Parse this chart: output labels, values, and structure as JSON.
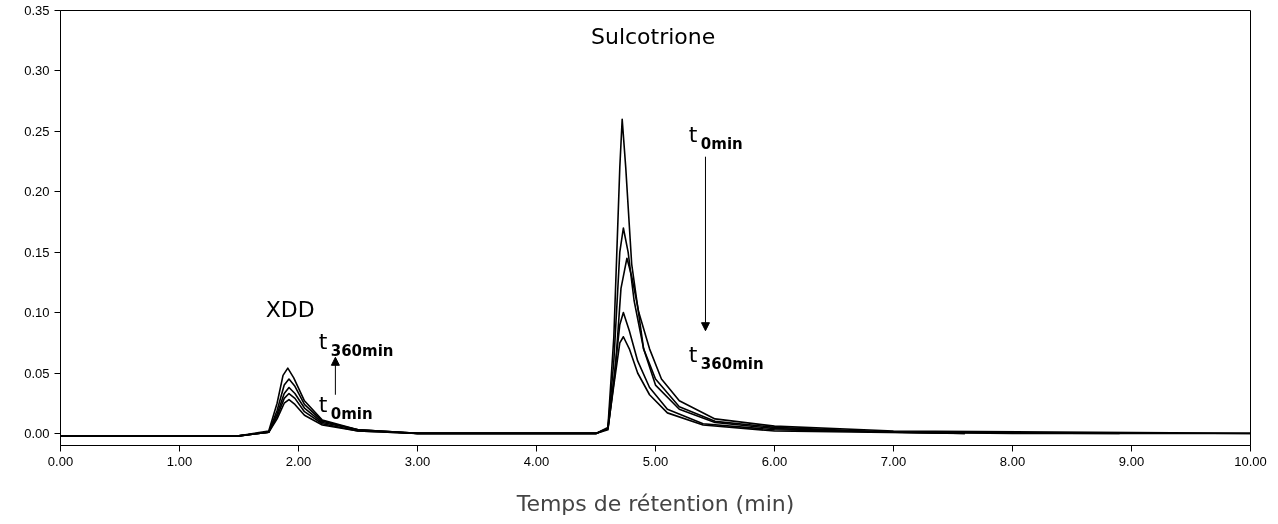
{
  "chart_data": {
    "type": "line",
    "xlabel": "Temps de rétention (min)",
    "xlim": [
      0,
      10
    ],
    "ylim": [
      -0.01,
      0.35
    ],
    "xticks": [
      {
        "value": 0,
        "label": "0.00"
      },
      {
        "value": 1,
        "label": "1.00"
      },
      {
        "value": 2,
        "label": "2.00"
      },
      {
        "value": 3,
        "label": "3.00"
      },
      {
        "value": 4,
        "label": "4.00"
      },
      {
        "value": 5,
        "label": "5.00"
      },
      {
        "value": 6,
        "label": "6.00"
      },
      {
        "value": 7,
        "label": "7.00"
      },
      {
        "value": 8,
        "label": "8.00"
      },
      {
        "value": 9,
        "label": "9.00"
      },
      {
        "value": 10,
        "label": "10.00"
      }
    ],
    "yticks": [
      {
        "value": 0,
        "label": "0.00"
      },
      {
        "value": 0.05,
        "label": "0.05"
      },
      {
        "value": 0.1,
        "label": "0.10"
      },
      {
        "value": 0.15,
        "label": "0.15"
      },
      {
        "value": 0.2,
        "label": "0.20"
      },
      {
        "value": 0.25,
        "label": "0.25"
      },
      {
        "value": 0.3,
        "label": "0.30"
      },
      {
        "value": 0.35,
        "label": "0.35"
      }
    ],
    "grid": false,
    "marker": "none",
    "line_style": "solid",
    "series": [
      {
        "color": "#000000",
        "x": [
          0,
          1.5,
          1.75,
          1.82,
          1.88,
          1.92,
          1.97,
          2.05,
          2.2,
          2.5,
          3,
          4,
          4.5,
          4.6,
          4.65,
          4.7,
          4.72,
          4.75,
          4.8,
          4.9,
          5.0,
          5.2,
          5.5,
          6,
          7,
          8,
          10
        ],
        "values": [
          -0.002,
          -0.002,
          0.001,
          0.012,
          0.025,
          0.028,
          0.024,
          0.015,
          0.007,
          0.002,
          0,
          0,
          0,
          0.005,
          0.08,
          0.22,
          0.26,
          0.22,
          0.14,
          0.07,
          0.04,
          0.02,
          0.009,
          0.004,
          0.001,
          0,
          0
        ]
      },
      {
        "color": "#000000",
        "x": [
          0,
          1.5,
          1.75,
          1.82,
          1.88,
          1.92,
          1.97,
          2.05,
          2.2,
          2.5,
          3,
          4,
          4.5,
          4.6,
          4.65,
          4.7,
          4.73,
          4.77,
          4.82,
          4.9,
          5.0,
          5.2,
          5.5,
          6,
          7,
          8.9
        ],
        "values": [
          -0.002,
          -0.002,
          0.001,
          0.014,
          0.029,
          0.033,
          0.029,
          0.018,
          0.008,
          0.002,
          0,
          0,
          0,
          0.004,
          0.06,
          0.15,
          0.17,
          0.15,
          0.11,
          0.07,
          0.045,
          0.022,
          0.01,
          0.005,
          0.001,
          0
        ]
      },
      {
        "color": "#000000",
        "x": [
          0,
          1.5,
          1.75,
          1.82,
          1.88,
          1.92,
          1.97,
          2.05,
          2.2,
          2.5,
          3,
          4,
          4.5,
          4.6,
          4.66,
          4.71,
          4.76,
          4.8,
          4.86,
          4.95,
          5.05,
          5.2,
          5.5,
          6,
          7,
          10
        ],
        "values": [
          -0.002,
          -0.002,
          0.001,
          0.016,
          0.033,
          0.038,
          0.033,
          0.021,
          0.009,
          0.003,
          0,
          0,
          0,
          0.003,
          0.05,
          0.12,
          0.145,
          0.13,
          0.1,
          0.07,
          0.045,
          0.027,
          0.012,
          0.006,
          0.002,
          0
        ]
      },
      {
        "color": "#000000",
        "x": [
          0,
          1.5,
          1.75,
          1.82,
          1.88,
          1.92,
          1.97,
          2.05,
          2.2,
          2.5,
          3,
          4,
          4.5,
          4.6,
          4.65,
          4.7,
          4.73,
          4.78,
          4.85,
          4.95,
          5.1,
          5.4,
          6,
          7.6
        ],
        "values": [
          -0.002,
          -0.002,
          0.001,
          0.019,
          0.04,
          0.045,
          0.039,
          0.024,
          0.01,
          0.003,
          0,
          0,
          0,
          0.004,
          0.045,
          0.09,
          0.1,
          0.085,
          0.06,
          0.038,
          0.02,
          0.008,
          0.003,
          0
        ]
      },
      {
        "color": "#000000",
        "x": [
          0,
          1.5,
          1.75,
          1.82,
          1.87,
          1.91,
          1.96,
          2.05,
          2.2,
          2.5,
          3,
          4,
          4.5,
          4.6,
          4.65,
          4.7,
          4.73,
          4.78,
          4.85,
          4.95,
          5.1,
          5.4,
          6,
          7.6
        ],
        "values": [
          -0.002,
          -0.002,
          0.002,
          0.025,
          0.048,
          0.054,
          0.046,
          0.027,
          0.011,
          0.003,
          0,
          0,
          0,
          0.004,
          0.04,
          0.075,
          0.08,
          0.07,
          0.05,
          0.032,
          0.017,
          0.007,
          0.002,
          0
        ]
      }
    ],
    "annotations": [
      "XDD",
      "t$_{0min}$",
      "t$_{360min}$",
      "Sulcotrione",
      "t$_{0min}$",
      "t$_{360min}$"
    ]
  }
}
